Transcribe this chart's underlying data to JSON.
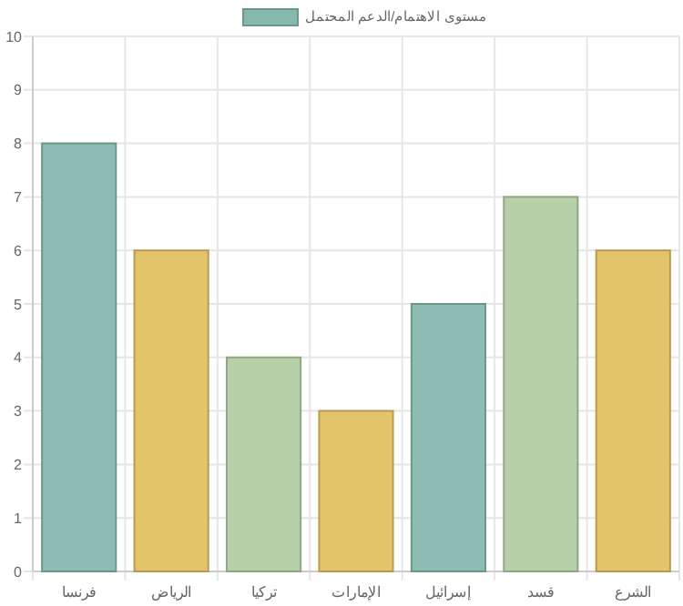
{
  "chart_data": {
    "type": "bar",
    "categories": [
      "فرنسا",
      "الرياض",
      "تركيا",
      "الإمارات",
      "إسرائيل",
      "قسد",
      "الشرع"
    ],
    "series": [
      {
        "name": "مستوى الاهتمام/الدعم المحتمل",
        "color": "#86b8ae",
        "values": [
          8,
          6,
          4,
          3,
          5,
          7,
          6
        ],
        "colors": [
          "#86b8ae",
          "#e3c163",
          "#b3cda3",
          "#e3c163",
          "#86b8ae",
          "#b3cda3",
          "#e3c163"
        ]
      }
    ],
    "ylim": [
      0,
      10
    ],
    "yticks": [
      0,
      1,
      2,
      3,
      4,
      5,
      6,
      7,
      8,
      9,
      10
    ],
    "grid": true,
    "legend": "top"
  }
}
